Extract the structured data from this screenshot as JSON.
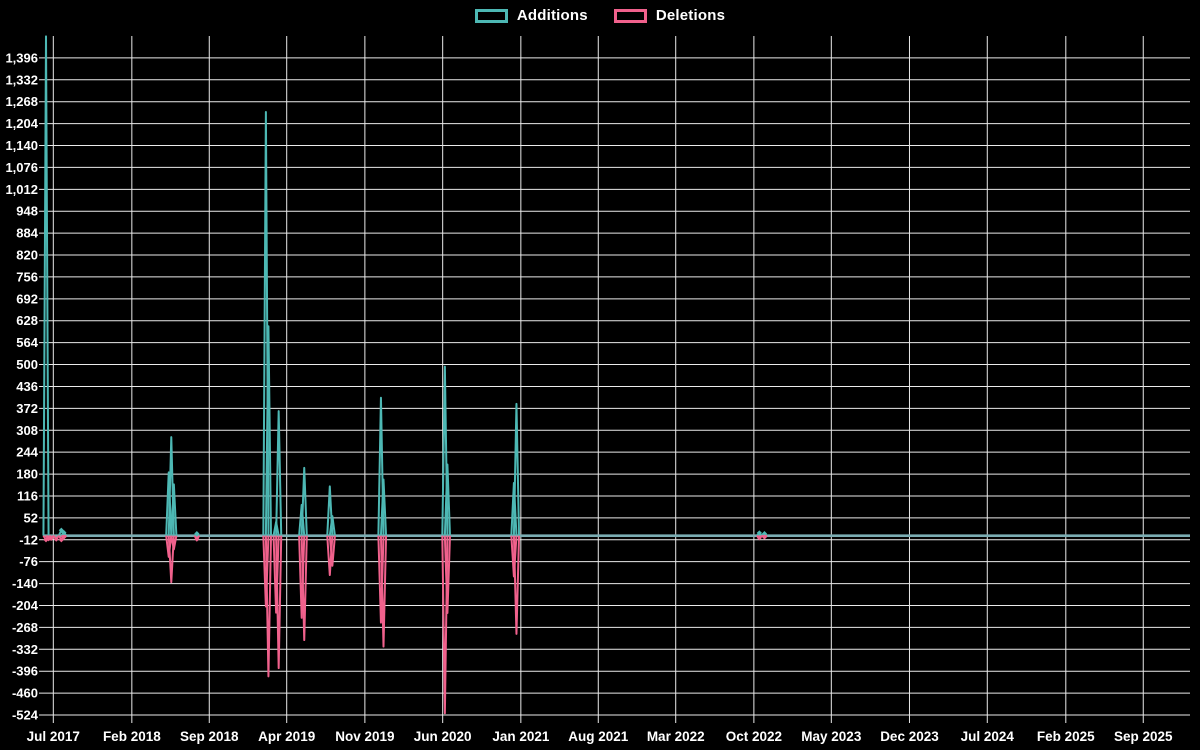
{
  "page": {
    "background_color": "#000000",
    "text_color": "#ffffff",
    "grid_color": "#eaeaea"
  },
  "legend": {
    "items": [
      {
        "label": "Additions",
        "color": "#4db8b4"
      },
      {
        "label": "Deletions",
        "color": "#f0618c"
      }
    ]
  },
  "chart_data": {
    "type": "line",
    "title": "",
    "xlabel": "",
    "ylabel": "",
    "legend_position": "top-center",
    "grid": true,
    "x_axis": {
      "start_date": "2017-06-11",
      "end_date": "2026-01-07",
      "ticks": [
        {
          "label": "Jul 2017",
          "date": "2017-07-01"
        },
        {
          "label": "Feb 2018",
          "date": "2018-02-01"
        },
        {
          "label": "Sep 2018",
          "date": "2018-09-01"
        },
        {
          "label": "Apr 2019",
          "date": "2019-04-01"
        },
        {
          "label": "Nov 2019",
          "date": "2019-11-01"
        },
        {
          "label": "Jun 2020",
          "date": "2020-06-01"
        },
        {
          "label": "Jan 2021",
          "date": "2021-01-01"
        },
        {
          "label": "Aug 2021",
          "date": "2021-08-01"
        },
        {
          "label": "Mar 2022",
          "date": "2022-03-01"
        },
        {
          "label": "Oct 2022",
          "date": "2022-10-01"
        },
        {
          "label": "May 2023",
          "date": "2023-05-01"
        },
        {
          "label": "Dec 2023",
          "date": "2023-12-01"
        },
        {
          "label": "Jul 2024",
          "date": "2024-07-01"
        },
        {
          "label": "Feb 2025",
          "date": "2025-02-01"
        },
        {
          "label": "Sep 2025",
          "date": "2025-09-01"
        }
      ]
    },
    "y_axis": {
      "min": -524,
      "max": 1460,
      "tick_step": 64,
      "tick_values": [
        1396,
        1332,
        1268,
        1204,
        1140,
        1076,
        1012,
        948,
        884,
        820,
        756,
        692,
        628,
        564,
        500,
        436,
        372,
        308,
        244,
        180,
        116,
        52,
        -12,
        -76,
        -140,
        -204,
        -268,
        -332,
        -396,
        -460,
        -524
      ]
    },
    "note": "Weekly series; all weeks not listed below have value 0 for both series. Additions spike at 2017-06-11 is clipped at the top of the plot.",
    "series": [
      {
        "name": "Additions",
        "color": "#4db8b4",
        "baseline": 0,
        "points": [
          [
            "2017-06-11",
            1459
          ],
          [
            "2017-07-23",
            16
          ],
          [
            "2017-07-30",
            9
          ],
          [
            "2018-05-13",
            185
          ],
          [
            "2018-05-20",
            288
          ],
          [
            "2018-05-27",
            150
          ],
          [
            "2018-07-29",
            6
          ],
          [
            "2019-02-03",
            1238
          ],
          [
            "2019-02-10",
            612
          ],
          [
            "2019-03-03",
            40
          ],
          [
            "2019-03-10",
            364
          ],
          [
            "2019-05-12",
            90
          ],
          [
            "2019-05-19",
            198
          ],
          [
            "2019-07-28",
            144
          ],
          [
            "2019-08-04",
            57
          ],
          [
            "2019-12-15",
            403
          ],
          [
            "2019-12-22",
            164
          ],
          [
            "2020-06-07",
            494
          ],
          [
            "2020-06-14",
            208
          ],
          [
            "2020-12-13",
            154
          ],
          [
            "2020-12-20",
            385
          ],
          [
            "2022-10-16",
            8
          ],
          [
            "2022-10-30",
            6
          ]
        ]
      },
      {
        "name": "Deletions",
        "color": "#f0618c",
        "baseline": 0,
        "points": [
          [
            "2017-06-11",
            -12
          ],
          [
            "2017-06-18",
            -9
          ],
          [
            "2017-06-25",
            -8
          ],
          [
            "2017-07-09",
            -10
          ],
          [
            "2017-07-23",
            -12
          ],
          [
            "2017-07-30",
            -4
          ],
          [
            "2018-05-13",
            -62
          ],
          [
            "2018-05-20",
            -136
          ],
          [
            "2018-05-27",
            -40
          ],
          [
            "2018-07-29",
            -10
          ],
          [
            "2019-02-03",
            -207
          ],
          [
            "2019-02-10",
            -411
          ],
          [
            "2019-03-03",
            -225
          ],
          [
            "2019-03-10",
            -387
          ],
          [
            "2019-05-12",
            -240
          ],
          [
            "2019-05-19",
            -305
          ],
          [
            "2019-07-28",
            -115
          ],
          [
            "2019-08-04",
            -88
          ],
          [
            "2019-12-15",
            -254
          ],
          [
            "2019-12-22",
            -324
          ],
          [
            "2020-06-07",
            -519
          ],
          [
            "2020-06-14",
            -226
          ],
          [
            "2020-12-13",
            -119
          ],
          [
            "2020-12-20",
            -287
          ],
          [
            "2022-10-16",
            -6
          ],
          [
            "2022-10-30",
            -4
          ]
        ]
      }
    ]
  }
}
